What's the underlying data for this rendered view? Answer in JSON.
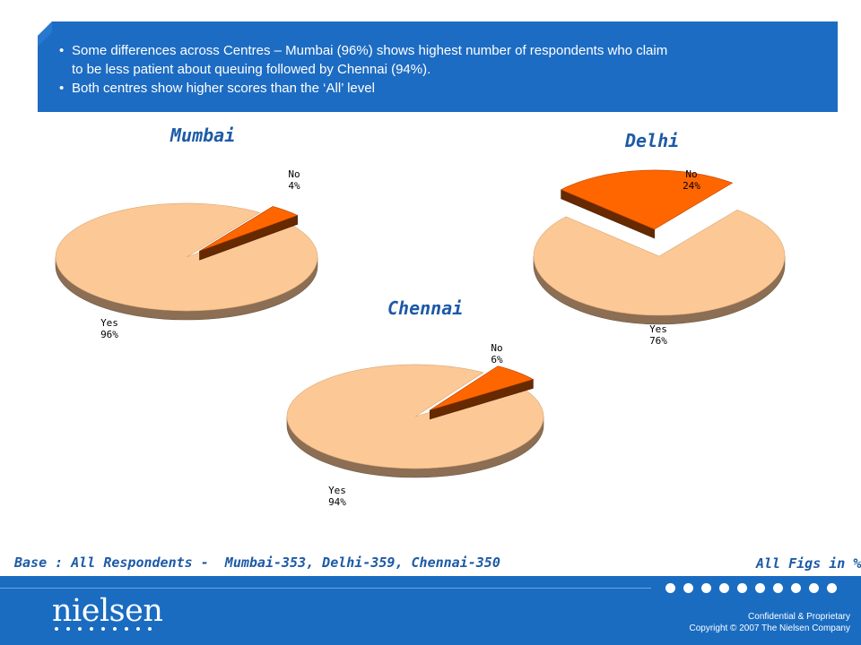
{
  "header": {
    "bullets": [
      "Some differences across Centres – Mumbai (96%) shows highest number of respondents who claim to be less patient about queuing followed by Chennai (94%).",
      "Both centres show higher scores than the ‘All’ level"
    ],
    "bullet_lines": [
      "Some differences across Centres – Mumbai (96%) shows highest number of respondents who claim",
      "to be less patient about queuing followed by Chennai (94%).",
      "Both centres show higher scores than the ‘All’ level"
    ],
    "bullet_symbol": "•"
  },
  "chart_data": [
    {
      "type": "pie",
      "title": "Mumbai",
      "categories": [
        "Yes",
        "No"
      ],
      "values": [
        96,
        4
      ],
      "labels": [
        "96%",
        "4%"
      ],
      "colors": [
        "#fcc896",
        "#ff6600"
      ],
      "exploded": "No"
    },
    {
      "type": "pie",
      "title": "Delhi",
      "categories": [
        "Yes",
        "No"
      ],
      "values": [
        76,
        24
      ],
      "labels": [
        "76%",
        "24%"
      ],
      "colors": [
        "#fcc896",
        "#ff6600"
      ],
      "exploded": "No"
    },
    {
      "type": "pie",
      "title": "Chennai",
      "categories": [
        "Yes",
        "No"
      ],
      "values": [
        94,
        6
      ],
      "labels": [
        "94%",
        "6%"
      ],
      "colors": [
        "#fcc896",
        "#ff6600"
      ],
      "exploded": "No"
    }
  ],
  "base_note": "Base : All Respondents -  Mumbai-353, Delhi-359, Chennai-350",
  "all_figs": "All Figs in %",
  "footer": {
    "logo": "nielsen",
    "confidential": "Confidential & Proprietary",
    "copyright": "Copyright © 2007 The Nielsen Company"
  },
  "colors": {
    "header_blue": "#1d6cc3",
    "title_blue": "#1d5aa6",
    "yes_slice": "#fcc896",
    "no_slice": "#ff6600",
    "footer_blue": "#1a6cc1"
  }
}
